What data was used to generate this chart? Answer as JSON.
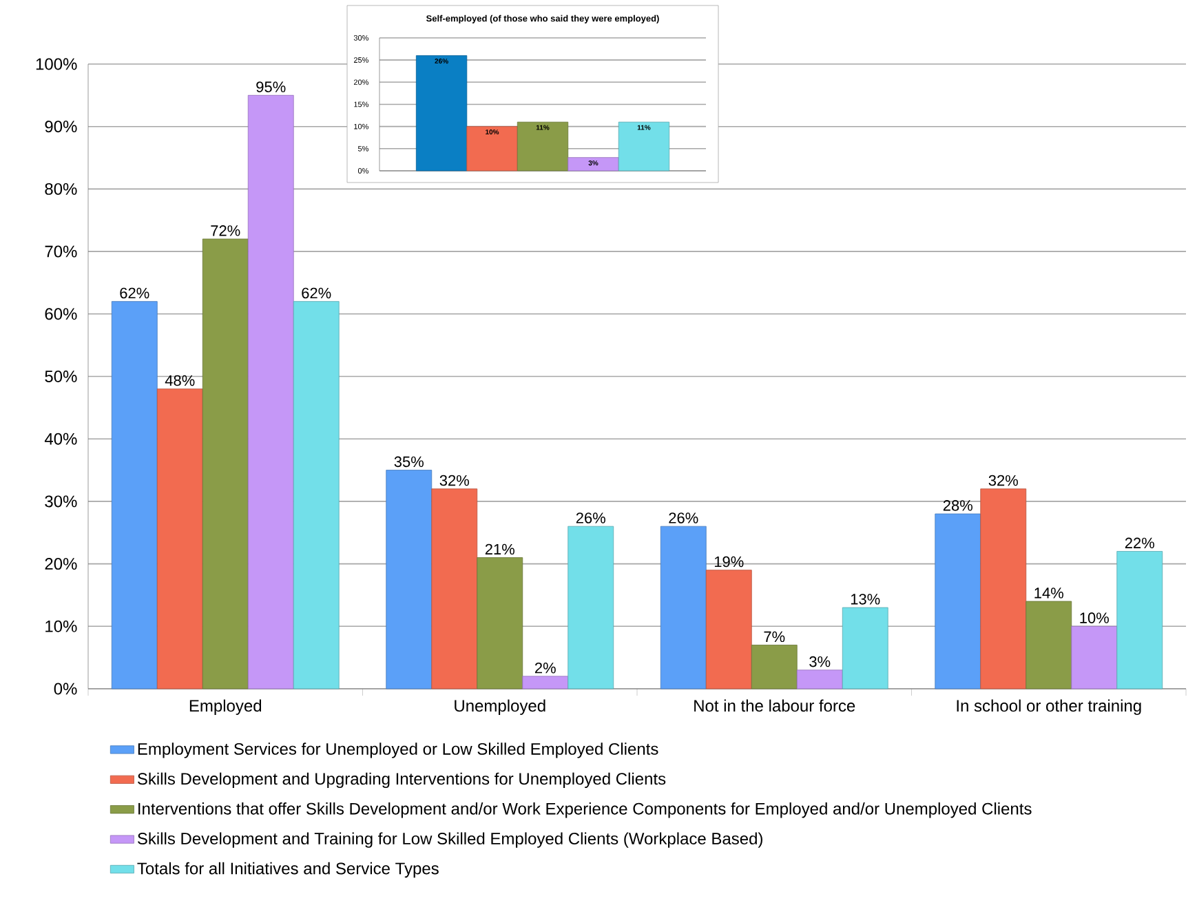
{
  "chart_data": [
    {
      "type": "bar",
      "categories": [
        "Employed",
        "Unemployed",
        "Not in the labour force",
        "In school or other training"
      ],
      "series": [
        {
          "name": "Employment Services for Unemployed or Low Skilled Employed Clients",
          "color": "#5ba0f8",
          "values": [
            62,
            35,
            26,
            28
          ],
          "value_labels": [
            "62%",
            "35%",
            "26%",
            "28%"
          ]
        },
        {
          "name": "Skills Development and Upgrading Interventions for Unemployed Clients",
          "color": "#f26b50",
          "values": [
            48,
            32,
            19,
            32
          ],
          "value_labels": [
            "48%",
            "32%",
            "19%",
            "32%"
          ]
        },
        {
          "name": "Interventions that offer Skills Development and/or Work Experience Components for Employed and/or Unemployed Clients",
          "color": "#8a9c48",
          "values": [
            72,
            21,
            7,
            14
          ],
          "value_labels": [
            "72%",
            "21%",
            "7%",
            "14%"
          ]
        },
        {
          "name": "Skills Development and Training for Low Skilled Employed Clients (Workplace Based)",
          "color": "#c597f7",
          "values": [
            95,
            2,
            3,
            10
          ],
          "value_labels": [
            "95%",
            "2%",
            "3%",
            "10%"
          ]
        },
        {
          "name": "Totals for all Initiatives and Service Types",
          "color": "#72dfe9",
          "values": [
            62,
            26,
            13,
            22
          ],
          "value_labels": [
            "62%",
            "26%",
            "13%",
            "22%"
          ]
        }
      ],
      "ylim": [
        0,
        100
      ],
      "yticks": [
        {
          "value": 0,
          "label": "0%"
        },
        {
          "value": 10,
          "label": "10%"
        },
        {
          "value": 20,
          "label": "20%"
        },
        {
          "value": 30,
          "label": "30%"
        },
        {
          "value": 40,
          "label": "40%"
        },
        {
          "value": 50,
          "label": "50%"
        },
        {
          "value": 60,
          "label": "60%"
        },
        {
          "value": 70,
          "label": "70%"
        },
        {
          "value": 80,
          "label": "80%"
        },
        {
          "value": 90,
          "label": "90%"
        },
        {
          "value": 100,
          "label": "100%"
        }
      ],
      "grid": "y",
      "legend": "bottom"
    },
    {
      "type": "bar",
      "title": "Self-employed (of those who said they were employed)",
      "categories": [
        null
      ],
      "series": [
        {
          "color": "#0a7fc4",
          "values": [
            26
          ],
          "value_labels": [
            "26%"
          ]
        },
        {
          "color": "#f26b50",
          "values": [
            10
          ],
          "value_labels": [
            "10%"
          ]
        },
        {
          "color": "#8a9c48",
          "values": [
            11
          ],
          "value_labels": [
            "11%"
          ]
        },
        {
          "color": "#c597f7",
          "values": [
            3
          ],
          "value_labels": [
            "3%"
          ]
        },
        {
          "color": "#72dfe9",
          "values": [
            11
          ],
          "value_labels": [
            "11%"
          ]
        }
      ],
      "ylim": [
        0,
        30
      ],
      "yticks": [
        {
          "value": 0,
          "label": "0%"
        },
        {
          "value": 5,
          "label": "5%"
        },
        {
          "value": 10,
          "label": "10%"
        },
        {
          "value": 15,
          "label": "15%"
        },
        {
          "value": 20,
          "label": "20%"
        },
        {
          "value": 25,
          "label": "25%"
        },
        {
          "value": 30,
          "label": "30%"
        }
      ],
      "grid": "y",
      "tick_labels": "y"
    }
  ]
}
